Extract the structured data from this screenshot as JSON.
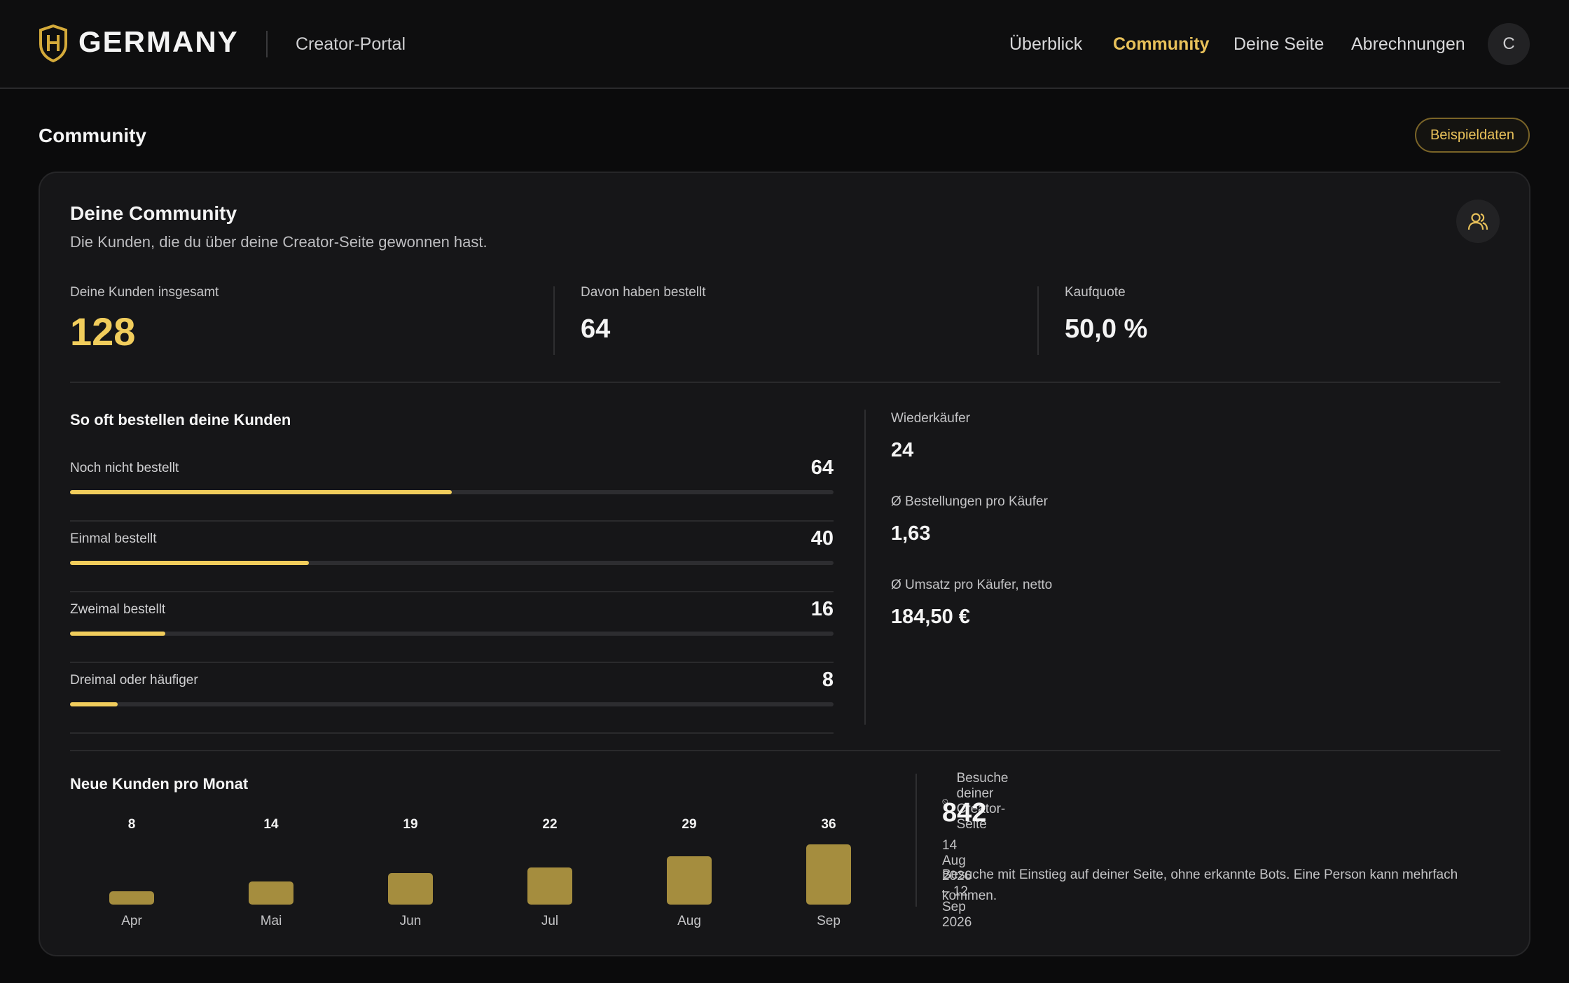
{
  "header": {
    "brand": "GERMANY",
    "portal_label": "Creator-Portal",
    "nav": [
      {
        "label": "Überblick",
        "active": false
      },
      {
        "label": "Community",
        "active": true
      },
      {
        "label": "Deine Seite",
        "active": false
      },
      {
        "label": "Abrechnungen",
        "active": false
      }
    ],
    "avatar_initial": "C",
    "logo_icon": "shield-h-icon"
  },
  "page": {
    "title": "Community",
    "sample_button": "Beispieldaten"
  },
  "card": {
    "title": "Deine Community",
    "subtitle": "Die Kunden, die du über deine Creator-Seite gewonnen hast.",
    "icon": "people-icon",
    "stats": [
      {
        "label": "Deine Kunden insgesamt",
        "value": "128"
      },
      {
        "label": "Davon haben bestellt",
        "value": "64"
      },
      {
        "label": "Kaufquote",
        "value": "50,0 %"
      }
    ]
  },
  "frequency": {
    "title": "So oft bestellen deine Kunden",
    "rows": [
      {
        "label": "Noch nicht bestellt",
        "count": "64",
        "share": 0.5
      },
      {
        "label": "Einmal bestellt",
        "count": "40",
        "share": 0.3125
      },
      {
        "label": "Zweimal bestellt",
        "count": "16",
        "share": 0.125
      },
      {
        "label": "Dreimal oder häufiger",
        "count": "8",
        "share": 0.0625
      }
    ]
  },
  "metrics": [
    {
      "label": "Wiederkäufer",
      "value": "24"
    },
    {
      "label": "Ø Bestellungen pro Käufer",
      "value": "1,63"
    },
    {
      "label": "Ø Umsatz pro Käufer, netto",
      "value": "184,50 €"
    }
  ],
  "chart_data": {
    "type": "bar",
    "title": "Neue Kunden pro Monat",
    "categories": [
      "Apr",
      "Mai",
      "Jun",
      "Jul",
      "Aug",
      "Sep"
    ],
    "values": [
      8,
      14,
      19,
      22,
      29,
      36
    ],
    "xlabel": "",
    "ylabel": "",
    "ylim": [
      0,
      36
    ],
    "grid": false,
    "bar_color": "#a58d3e"
  },
  "visits": {
    "label": "Besuche deiner Creator-Seite",
    "icon": "globe-icon",
    "count": "842",
    "range": "14 Aug 2026 – 12 Sep 2026",
    "note": "Besuche mit Einstieg auf deiner Seite, ohne erkannte Bots. Eine Person kann mehrfach kommen."
  },
  "colors": {
    "accent": "#e8c15a",
    "accent_bright": "#f1cd5c",
    "background": "#0b0b0c",
    "card": "#161618"
  }
}
